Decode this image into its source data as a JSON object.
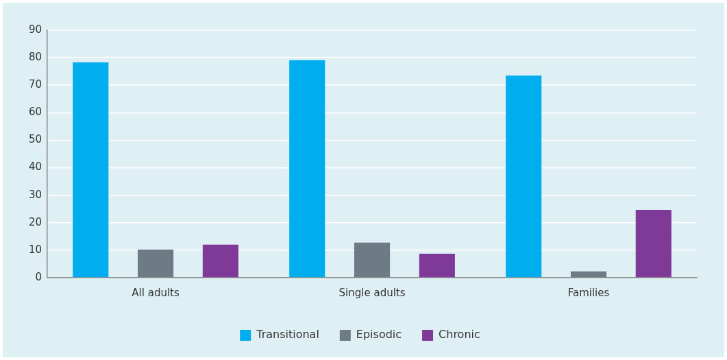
{
  "chart_data": {
    "type": "bar",
    "categories": [
      "All adults",
      "Single adults",
      "Families"
    ],
    "series": [
      {
        "name": "Transitional",
        "color": "#00aeef",
        "values": [
          78.3,
          79.1,
          73.5
        ]
      },
      {
        "name": "Episodic",
        "color": "#6d7b84",
        "values": [
          10.2,
          12.8,
          2.3
        ]
      },
      {
        "name": "Chronic",
        "color": "#7e3a96",
        "values": [
          12.0,
          8.7,
          24.7
        ]
      }
    ],
    "ylim": [
      0,
      90
    ],
    "yticks": [
      0,
      10,
      20,
      30,
      40,
      50,
      60,
      70,
      80,
      90
    ],
    "grid": "y",
    "legend": "bottom"
  }
}
